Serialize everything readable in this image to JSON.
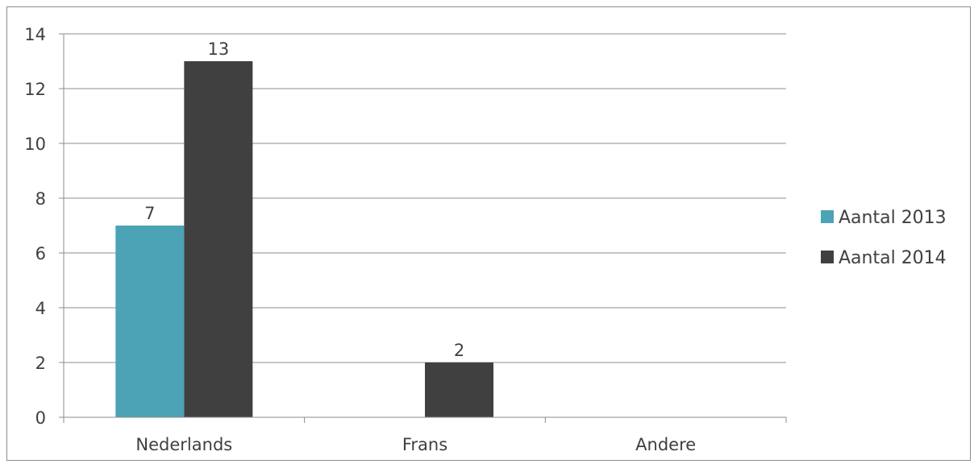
{
  "chart_data": {
    "type": "bar",
    "categories": [
      "Nederlands",
      "Frans",
      "Andere"
    ],
    "series": [
      {
        "name": "Aantal 2013",
        "values": [
          7,
          0,
          0
        ],
        "color": "#4BA3B5"
      },
      {
        "name": "Aantal 2014",
        "values": [
          13,
          2,
          0
        ],
        "color": "#404040"
      }
    ],
    "data_labels": [
      [
        7,
        null,
        null
      ],
      [
        13,
        2,
        null
      ]
    ],
    "ylim": [
      0,
      14
    ],
    "yticks": [
      "0",
      "2",
      "4",
      "6",
      "8",
      "10",
      "12",
      "14"
    ],
    "grid": true,
    "legend_position": "right",
    "title": "",
    "xlabel": "",
    "ylabel": ""
  }
}
